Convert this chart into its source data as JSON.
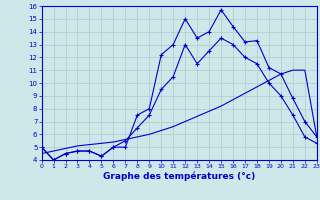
{
  "xlabel": "Graphe des températures (°c)",
  "bg_color": "#cce8e8",
  "line_color": "#0000cc",
  "grid_color": "#aacccc",
  "x": [
    0,
    1,
    2,
    3,
    4,
    5,
    6,
    7,
    8,
    9,
    10,
    11,
    12,
    13,
    14,
    15,
    16,
    17,
    18,
    19,
    20,
    21,
    22,
    23
  ],
  "y_main": [
    5.0,
    4.0,
    4.5,
    4.7,
    4.7,
    4.3,
    5.0,
    5.0,
    7.5,
    8.0,
    12.2,
    13.0,
    15.0,
    13.5,
    14.0,
    15.7,
    14.4,
    13.2,
    13.3,
    11.2,
    10.7,
    8.8,
    7.0,
    5.8
  ],
  "y_line2": [
    5.0,
    4.0,
    4.5,
    4.7,
    4.7,
    4.3,
    5.0,
    5.5,
    6.5,
    7.5,
    9.5,
    10.5,
    13.0,
    11.5,
    12.5,
    13.5,
    13.0,
    12.0,
    11.5,
    10.0,
    9.0,
    7.5,
    5.8,
    5.3
  ],
  "y_diag": [
    4.5,
    4.7,
    4.9,
    5.1,
    5.2,
    5.3,
    5.4,
    5.6,
    5.8,
    6.0,
    6.3,
    6.6,
    7.0,
    7.4,
    7.8,
    8.2,
    8.7,
    9.2,
    9.7,
    10.2,
    10.7,
    11.0,
    11.0,
    5.8
  ],
  "ylim": [
    4,
    16
  ],
  "xlim": [
    0,
    23
  ],
  "yticks": [
    4,
    5,
    6,
    7,
    8,
    9,
    10,
    11,
    12,
    13,
    14,
    15,
    16
  ],
  "xticks": [
    0,
    1,
    2,
    3,
    4,
    5,
    6,
    7,
    8,
    9,
    10,
    11,
    12,
    13,
    14,
    15,
    16,
    17,
    18,
    19,
    20,
    21,
    22,
    23
  ],
  "figsize": [
    3.2,
    2.0
  ],
  "dpi": 100
}
